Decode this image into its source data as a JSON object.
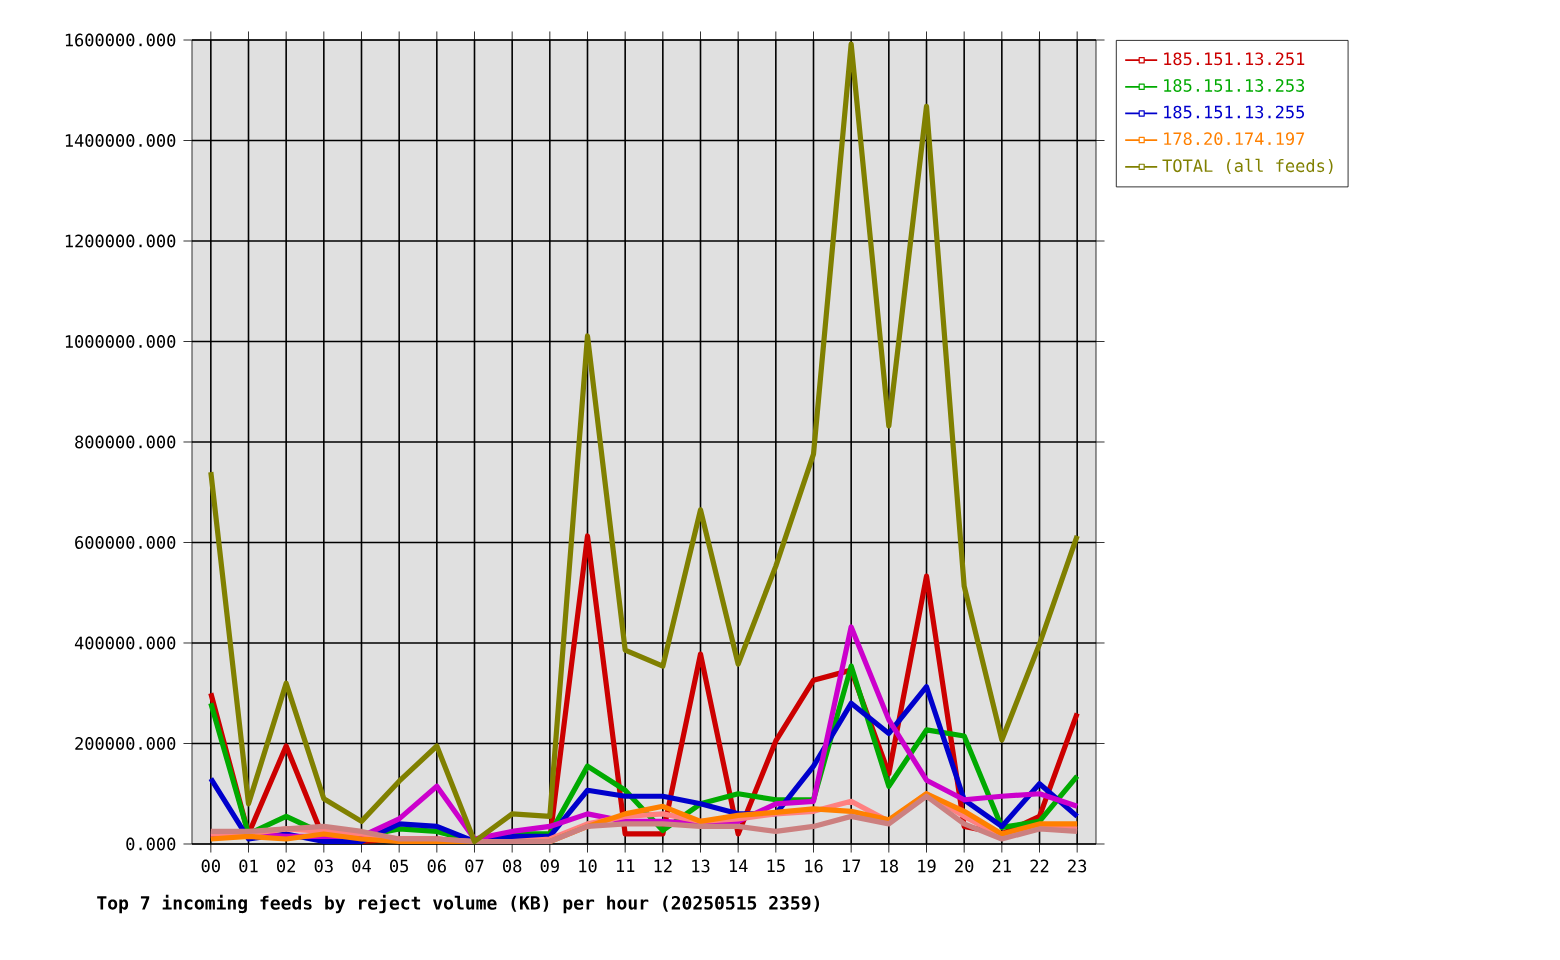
{
  "chart_data": {
    "type": "line",
    "title": "Top 7 incoming feeds by reject volume (KB) per hour (20250515 2359)",
    "categories": [
      "00",
      "01",
      "02",
      "03",
      "04",
      "05",
      "06",
      "07",
      "08",
      "09",
      "10",
      "11",
      "12",
      "13",
      "14",
      "15",
      "16",
      "17",
      "18",
      "19",
      "20",
      "21",
      "22",
      "23"
    ],
    "series": [
      {
        "name": "185.151.13.251",
        "color": "#cc0000",
        "values": [
          300000,
          20000,
          195000,
          10000,
          5000,
          10000,
          10000,
          5000,
          10000,
          10000,
          613000,
          20000,
          20000,
          378000,
          20000,
          205000,
          326000,
          346000,
          140000,
          533000,
          35000,
          20000,
          55000,
          260000
        ]
      },
      {
        "name": "185.151.13.253",
        "color": "#00aa00",
        "values": [
          280000,
          20000,
          55000,
          20000,
          15000,
          30000,
          25000,
          5000,
          20000,
          20000,
          155000,
          107000,
          27000,
          80000,
          100000,
          88000,
          88000,
          354000,
          115000,
          227000,
          215000,
          33000,
          45000,
          135000
        ]
      },
      {
        "name": "185.151.13.255",
        "color": "#0000cc",
        "values": [
          130000,
          10000,
          20000,
          5000,
          5000,
          40000,
          35000,
          5000,
          15000,
          15000,
          107000,
          95000,
          95000,
          80000,
          60000,
          60000,
          155000,
          280000,
          220000,
          313000,
          88000,
          35000,
          120000,
          55000
        ]
      },
      {
        "color": "#cc00cc",
        "values": [
          15000,
          20000,
          15000,
          15000,
          15000,
          50000,
          115000,
          10000,
          25000,
          35000,
          60000,
          45000,
          45000,
          40000,
          45000,
          80000,
          85000,
          432000,
          247000,
          127000,
          88000,
          95000,
          100000,
          75000
        ]
      },
      {
        "color": "#ff8080",
        "values": [
          20000,
          20000,
          30000,
          25000,
          20000,
          10000,
          10000,
          5000,
          5000,
          10000,
          40000,
          55000,
          60000,
          45000,
          50000,
          60000,
          65000,
          85000,
          45000,
          100000,
          55000,
          15000,
          35000,
          30000
        ]
      },
      {
        "name": "178.20.174.197",
        "color": "#ff8000",
        "values": [
          10000,
          15000,
          10000,
          20000,
          10000,
          5000,
          5000,
          5000,
          5000,
          5000,
          35000,
          60000,
          75000,
          45000,
          57000,
          63000,
          70000,
          65000,
          48000,
          100000,
          65000,
          20000,
          40000,
          40000
        ]
      },
      {
        "color": "#cc8080",
        "values": [
          25000,
          25000,
          30000,
          35000,
          25000,
          10000,
          10000,
          5000,
          5000,
          5000,
          35000,
          40000,
          40000,
          35000,
          35000,
          25000,
          35000,
          55000,
          40000,
          95000,
          40000,
          10000,
          30000,
          25000
        ]
      },
      {
        "name": "TOTAL (all feeds)",
        "color": "#808000",
        "values": [
          740000,
          80000,
          320000,
          90000,
          45000,
          125000,
          195000,
          5000,
          60000,
          55000,
          1011000,
          386000,
          354000,
          665000,
          358000,
          553000,
          776000,
          1592000,
          832000,
          1468000,
          513000,
          207000,
          398000,
          613000
        ]
      }
    ],
    "ylim": [
      0,
      1600000
    ],
    "yticks": [
      {
        "value": 0,
        "label": "0.000"
      },
      {
        "value": 200000,
        "label": "200000.000"
      },
      {
        "value": 400000,
        "label": "400000.000"
      },
      {
        "value": 600000,
        "label": "600000.000"
      },
      {
        "value": 800000,
        "label": "800000.000"
      },
      {
        "value": 1000000,
        "label": "1000000.000"
      },
      {
        "value": 1200000,
        "label": "1200000.000"
      },
      {
        "value": 1400000,
        "label": "1400000.000"
      },
      {
        "value": 1600000,
        "label": "1600000.000"
      }
    ],
    "grid": true,
    "legend": "top right"
  }
}
